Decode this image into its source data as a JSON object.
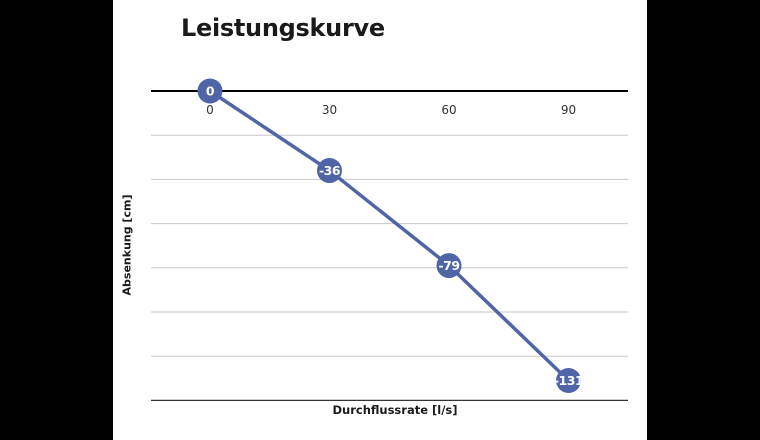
{
  "chart_data": {
    "type": "line",
    "title": "Leistungskurve",
    "xlabel": "Durchflussrate [l/s]",
    "ylabel": "Absenkung [cm]",
    "categories": [
      "0",
      "30",
      "60",
      "90"
    ],
    "x": [
      0,
      30,
      60,
      90
    ],
    "series": [
      {
        "name": "Absenkung",
        "values": [
          0,
          -36,
          -79,
          -131
        ],
        "color": "#5065A8"
      }
    ],
    "data_labels": [
      "0",
      "-36",
      "-79",
      "-131"
    ],
    "ylim": [
      -140,
      0
    ],
    "y_gridline_step": 20,
    "grid": true,
    "x_axis_position": "top",
    "legend": "none"
  },
  "colors": {
    "line": "#5065A8",
    "marker": "#5065A8",
    "marker_text": "#ffffff",
    "axis": "#000000",
    "gridline": "#c8c8c8",
    "background": "#ffffff",
    "frame": "#000000"
  }
}
